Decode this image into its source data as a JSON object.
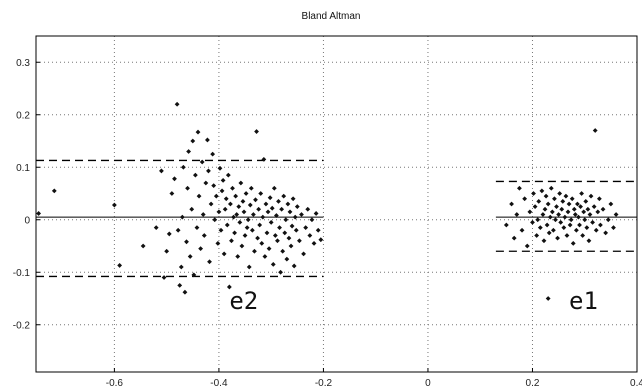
{
  "chart_data": {
    "type": "scatter",
    "title": "Bland Altman",
    "xlabel": "",
    "ylabel": "",
    "xlim": [
      -0.75,
      0.4
    ],
    "ylim": [
      -0.29,
      0.35
    ],
    "x_ticks": [
      -0.6,
      -0.4,
      -0.2,
      0,
      0.2,
      0.4
    ],
    "x_tick_labels": [
      "-0.6",
      "-0.4",
      "-0.2",
      "0",
      "0.2",
      "0.4"
    ],
    "y_ticks": [
      -0.2,
      -0.1,
      0,
      0.1,
      0.2,
      0.3
    ],
    "y_tick_labels": [
      "-0.2",
      "-0.1",
      "0",
      "0.1",
      "0.2",
      "0.3"
    ],
    "grid": true,
    "marker_color": "#111111",
    "groups": [
      {
        "label": "e2",
        "label_position": [
          -0.38,
          -0.155
        ],
        "mean_line": {
          "x": [
            -0.75,
            -0.2
          ],
          "y": 0.005
        },
        "upper_limit": {
          "x": [
            -0.75,
            -0.2
          ],
          "y": 0.113
        },
        "lower_limit": {
          "x": [
            -0.75,
            -0.2
          ],
          "y": -0.108
        },
        "points": [
          [
            -0.745,
            0.012
          ],
          [
            -0.715,
            0.055
          ],
          [
            -0.6,
            0.028
          ],
          [
            -0.59,
            -0.087
          ],
          [
            -0.545,
            -0.05
          ],
          [
            -0.52,
            -0.015
          ],
          [
            -0.51,
            0.093
          ],
          [
            -0.505,
            -0.11
          ],
          [
            -0.5,
            -0.06
          ],
          [
            -0.495,
            -0.027
          ],
          [
            -0.49,
            0.05
          ],
          [
            -0.485,
            0.078
          ],
          [
            -0.48,
            0.22
          ],
          [
            -0.478,
            -0.02
          ],
          [
            -0.475,
            -0.125
          ],
          [
            -0.472,
            -0.09
          ],
          [
            -0.47,
            0.005
          ],
          [
            -0.468,
            0.1
          ],
          [
            -0.465,
            -0.138
          ],
          [
            -0.462,
            -0.042
          ],
          [
            -0.46,
            0.06
          ],
          [
            -0.458,
            0.13
          ],
          [
            -0.455,
            -0.07
          ],
          [
            -0.452,
            0.02
          ],
          [
            -0.45,
            0.15
          ],
          [
            -0.448,
            -0.105
          ],
          [
            -0.445,
            0.085
          ],
          [
            -0.442,
            -0.015
          ],
          [
            -0.44,
            0.167
          ],
          [
            -0.438,
            0.045
          ],
          [
            -0.435,
            -0.055
          ],
          [
            -0.432,
            0.11
          ],
          [
            -0.43,
            0.01
          ],
          [
            -0.428,
            -0.03
          ],
          [
            -0.425,
            0.07
          ],
          [
            -0.422,
            0.152
          ],
          [
            -0.42,
            0.093
          ],
          [
            -0.418,
            -0.08
          ],
          [
            -0.415,
            0.03
          ],
          [
            -0.412,
            0.125
          ],
          [
            -0.41,
            0.065
          ],
          [
            -0.408,
            0.0
          ],
          [
            -0.405,
            0.045
          ],
          [
            -0.402,
            -0.045
          ],
          [
            -0.4,
            0.015
          ],
          [
            -0.398,
            0.098
          ],
          [
            -0.396,
            -0.02
          ],
          [
            -0.394,
            0.055
          ],
          [
            -0.392,
            0.075
          ],
          [
            -0.39,
            -0.065
          ],
          [
            -0.388,
            0.02
          ],
          [
            -0.386,
            0.04
          ],
          [
            -0.384,
            -0.01
          ],
          [
            -0.382,
            0.085
          ],
          [
            -0.38,
            -0.128
          ],
          [
            -0.378,
            0.03
          ],
          [
            -0.376,
            -0.04
          ],
          [
            -0.374,
            0.06
          ],
          [
            -0.372,
            0.005
          ],
          [
            -0.37,
            -0.025
          ],
          [
            -0.368,
            0.045
          ],
          [
            -0.366,
            0.01
          ],
          [
            -0.364,
            -0.07
          ],
          [
            -0.362,
            0.025
          ],
          [
            -0.36,
            -0.005
          ],
          [
            -0.358,
            0.07
          ],
          [
            -0.356,
            -0.05
          ],
          [
            -0.354,
            0.035
          ],
          [
            -0.352,
            0.015
          ],
          [
            -0.35,
            -0.03
          ],
          [
            -0.348,
            0.05
          ],
          [
            -0.346,
            -0.015
          ],
          [
            -0.344,
            0.0
          ],
          [
            -0.342,
            -0.09
          ],
          [
            -0.34,
            0.028
          ],
          [
            -0.338,
            0.06
          ],
          [
            -0.336,
            -0.02
          ],
          [
            -0.334,
            0.01
          ],
          [
            -0.332,
            -0.06
          ],
          [
            -0.33,
            0.038
          ],
          [
            -0.328,
            0.168
          ],
          [
            -0.326,
            -0.035
          ],
          [
            -0.324,
            0.02
          ],
          [
            -0.322,
            -0.01
          ],
          [
            -0.32,
            0.05
          ],
          [
            -0.318,
            -0.045
          ],
          [
            -0.316,
            0.005
          ],
          [
            -0.314,
            0.115
          ],
          [
            -0.312,
            -0.07
          ],
          [
            -0.31,
            0.03
          ],
          [
            -0.308,
            -0.025
          ],
          [
            -0.306,
            0.015
          ],
          [
            -0.304,
            -0.055
          ],
          [
            -0.302,
            0.042
          ],
          [
            -0.3,
            -0.005
          ],
          [
            -0.298,
            0.022
          ],
          [
            -0.296,
            -0.085
          ],
          [
            -0.294,
            0.06
          ],
          [
            -0.292,
            -0.03
          ],
          [
            -0.29,
            0.008
          ],
          [
            -0.288,
            -0.04
          ],
          [
            -0.286,
            0.035
          ],
          [
            -0.284,
            -0.015
          ],
          [
            -0.282,
            -0.1
          ],
          [
            -0.28,
            0.02
          ],
          [
            -0.278,
            -0.06
          ],
          [
            -0.276,
            0.045
          ],
          [
            -0.274,
            -0.025
          ],
          [
            -0.272,
            0.0
          ],
          [
            -0.27,
            -0.075
          ],
          [
            -0.268,
            0.03
          ],
          [
            -0.266,
            -0.035
          ],
          [
            -0.264,
            0.015
          ],
          [
            -0.262,
            -0.05
          ],
          [
            -0.26,
            -0.012
          ],
          [
            -0.258,
            0.04
          ],
          [
            -0.256,
            -0.088
          ],
          [
            -0.254,
            0.005
          ],
          [
            -0.252,
            -0.02
          ],
          [
            -0.25,
            0.025
          ],
          [
            -0.246,
            -0.04
          ],
          [
            -0.242,
            0.01
          ],
          [
            -0.238,
            -0.065
          ],
          [
            -0.234,
            -0.015
          ],
          [
            -0.23,
            0.02
          ],
          [
            -0.226,
            -0.03
          ],
          [
            -0.222,
            0.0
          ],
          [
            -0.218,
            -0.045
          ],
          [
            -0.214,
            0.012
          ],
          [
            -0.21,
            -0.02
          ],
          [
            -0.205,
            -0.038
          ]
        ]
      },
      {
        "label": "e1",
        "label_position": [
          0.27,
          -0.155
        ],
        "mean_line": {
          "x": [
            0.13,
            0.4
          ],
          "y": 0.005
        },
        "upper_limit": {
          "x": [
            0.13,
            0.4
          ],
          "y": 0.073
        },
        "lower_limit": {
          "x": [
            0.13,
            0.4
          ],
          "y": -0.06
        },
        "points": [
          [
            0.15,
            -0.01
          ],
          [
            0.16,
            0.03
          ],
          [
            0.165,
            -0.035
          ],
          [
            0.17,
            0.01
          ],
          [
            0.175,
            0.06
          ],
          [
            0.18,
            -0.02
          ],
          [
            0.185,
            0.04
          ],
          [
            0.19,
            -0.05
          ],
          [
            0.195,
            0.015
          ],
          [
            0.2,
            -0.005
          ],
          [
            0.202,
            0.05
          ],
          [
            0.205,
            0.025
          ],
          [
            0.208,
            -0.03
          ],
          [
            0.21,
            0.0
          ],
          [
            0.212,
            0.035
          ],
          [
            0.215,
            -0.015
          ],
          [
            0.218,
            0.055
          ],
          [
            0.22,
            0.01
          ],
          [
            0.222,
            -0.04
          ],
          [
            0.224,
            0.02
          ],
          [
            0.226,
            0.045
          ],
          [
            0.228,
            -0.01
          ],
          [
            0.23,
            0.03
          ],
          [
            0.232,
            -0.025
          ],
          [
            0.234,
            0.005
          ],
          [
            0.236,
            0.06
          ],
          [
            0.238,
            0.015
          ],
          [
            0.24,
            -0.02
          ],
          [
            0.242,
            0.04
          ],
          [
            0.244,
            0.0
          ],
          [
            0.246,
            0.025
          ],
          [
            0.248,
            -0.035
          ],
          [
            0.25,
            0.01
          ],
          [
            0.252,
            0.05
          ],
          [
            0.254,
            -0.005
          ],
          [
            0.256,
            0.02
          ],
          [
            0.258,
            0.035
          ],
          [
            0.26,
            -0.015
          ],
          [
            0.262,
            0.005
          ],
          [
            0.264,
            0.045
          ],
          [
            0.266,
            -0.03
          ],
          [
            0.268,
            0.015
          ],
          [
            0.27,
            0.03
          ],
          [
            0.272,
            -0.01
          ],
          [
            0.274,
            0.0
          ],
          [
            0.276,
            0.04
          ],
          [
            0.278,
            -0.045
          ],
          [
            0.28,
            0.02
          ],
          [
            0.282,
            0.01
          ],
          [
            0.284,
            -0.02
          ],
          [
            0.286,
            0.03
          ],
          [
            0.288,
            0.005
          ],
          [
            0.29,
            -0.01
          ],
          [
            0.292,
            0.025
          ],
          [
            0.294,
            0.05
          ],
          [
            0.296,
            -0.03
          ],
          [
            0.298,
            0.015
          ],
          [
            0.3,
            0.0
          ],
          [
            0.302,
            0.035
          ],
          [
            0.304,
            -0.015
          ],
          [
            0.306,
            0.02
          ],
          [
            0.308,
            -0.04
          ],
          [
            0.31,
            0.01
          ],
          [
            0.312,
            0.045
          ],
          [
            0.315,
            -0.005
          ],
          [
            0.318,
            0.025
          ],
          [
            0.32,
            0.17
          ],
          [
            0.322,
            -0.02
          ],
          [
            0.325,
            0.015
          ],
          [
            0.328,
            0.04
          ],
          [
            0.33,
            -0.01
          ],
          [
            0.335,
            0.02
          ],
          [
            0.34,
            -0.025
          ],
          [
            0.345,
            0.0
          ],
          [
            0.35,
            0.03
          ],
          [
            0.355,
            -0.015
          ],
          [
            0.36,
            0.01
          ],
          [
            0.23,
            -0.15
          ]
        ]
      }
    ]
  }
}
